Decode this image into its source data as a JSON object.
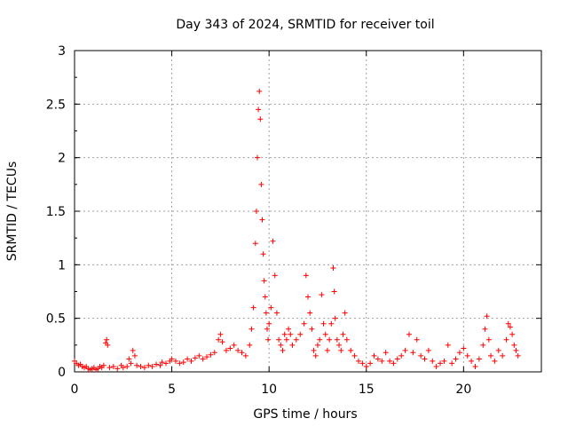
{
  "chart_data": {
    "type": "scatter",
    "title": "Day 343 of 2024, SRMTID for receiver toil",
    "xlabel": "GPS time / hours",
    "ylabel": "SRMTID / TECUs",
    "xlim": [
      0,
      24
    ],
    "ylim": [
      0,
      3
    ],
    "xticks": [
      0,
      5,
      10,
      15,
      20
    ],
    "yticks": [
      0,
      0.5,
      1,
      1.5,
      2,
      2.5,
      3
    ],
    "ytick_labels": [
      "0",
      "0.5",
      "1",
      "1.5",
      "2",
      "2.5",
      "3"
    ],
    "grid": true,
    "marker": "+",
    "color": "#ff0000",
    "series": [
      {
        "name": "SRMTID",
        "points": [
          [
            0.0,
            0.1
          ],
          [
            0.1,
            0.08
          ],
          [
            0.2,
            0.06
          ],
          [
            0.3,
            0.07
          ],
          [
            0.4,
            0.05
          ],
          [
            0.5,
            0.04
          ],
          [
            0.6,
            0.05
          ],
          [
            0.7,
            0.03
          ],
          [
            0.8,
            0.02
          ],
          [
            0.9,
            0.03
          ],
          [
            1.0,
            0.04
          ],
          [
            1.1,
            0.02
          ],
          [
            1.2,
            0.03
          ],
          [
            1.3,
            0.05
          ],
          [
            1.4,
            0.04
          ],
          [
            1.5,
            0.06
          ],
          [
            1.6,
            0.27
          ],
          [
            1.65,
            0.3
          ],
          [
            1.7,
            0.25
          ],
          [
            1.8,
            0.04
          ],
          [
            2.0,
            0.05
          ],
          [
            2.2,
            0.03
          ],
          [
            2.4,
            0.06
          ],
          [
            2.5,
            0.04
          ],
          [
            2.7,
            0.05
          ],
          [
            2.8,
            0.12
          ],
          [
            2.9,
            0.08
          ],
          [
            3.0,
            0.2
          ],
          [
            3.1,
            0.15
          ],
          [
            3.2,
            0.06
          ],
          [
            3.4,
            0.05
          ],
          [
            3.6,
            0.04
          ],
          [
            3.8,
            0.06
          ],
          [
            4.0,
            0.05
          ],
          [
            4.2,
            0.07
          ],
          [
            4.4,
            0.06
          ],
          [
            4.5,
            0.09
          ],
          [
            4.7,
            0.08
          ],
          [
            4.9,
            0.1
          ],
          [
            5.0,
            0.12
          ],
          [
            5.2,
            0.1
          ],
          [
            5.4,
            0.08
          ],
          [
            5.6,
            0.09
          ],
          [
            5.8,
            0.12
          ],
          [
            6.0,
            0.1
          ],
          [
            6.2,
            0.13
          ],
          [
            6.4,
            0.15
          ],
          [
            6.6,
            0.12
          ],
          [
            6.8,
            0.14
          ],
          [
            7.0,
            0.16
          ],
          [
            7.2,
            0.18
          ],
          [
            7.4,
            0.3
          ],
          [
            7.5,
            0.35
          ],
          [
            7.6,
            0.28
          ],
          [
            7.8,
            0.2
          ],
          [
            8.0,
            0.22
          ],
          [
            8.2,
            0.25
          ],
          [
            8.4,
            0.2
          ],
          [
            8.6,
            0.18
          ],
          [
            8.8,
            0.15
          ],
          [
            9.0,
            0.25
          ],
          [
            9.1,
            0.4
          ],
          [
            9.2,
            0.6
          ],
          [
            9.3,
            1.2
          ],
          [
            9.35,
            1.5
          ],
          [
            9.4,
            2.0
          ],
          [
            9.45,
            2.45
          ],
          [
            9.5,
            2.62
          ],
          [
            9.55,
            2.36
          ],
          [
            9.6,
            1.75
          ],
          [
            9.65,
            1.42
          ],
          [
            9.7,
            1.1
          ],
          [
            9.75,
            0.85
          ],
          [
            9.8,
            0.7
          ],
          [
            9.85,
            0.55
          ],
          [
            9.9,
            0.4
          ],
          [
            9.95,
            0.3
          ],
          [
            10.0,
            0.45
          ],
          [
            10.1,
            0.6
          ],
          [
            10.2,
            1.22
          ],
          [
            10.3,
            0.9
          ],
          [
            10.4,
            0.55
          ],
          [
            10.5,
            0.3
          ],
          [
            10.6,
            0.25
          ],
          [
            10.7,
            0.2
          ],
          [
            10.8,
            0.35
          ],
          [
            10.9,
            0.3
          ],
          [
            11.0,
            0.4
          ],
          [
            11.1,
            0.35
          ],
          [
            11.2,
            0.25
          ],
          [
            11.4,
            0.3
          ],
          [
            11.6,
            0.35
          ],
          [
            11.8,
            0.45
          ],
          [
            11.9,
            0.9
          ],
          [
            12.0,
            0.7
          ],
          [
            12.1,
            0.55
          ],
          [
            12.2,
            0.4
          ],
          [
            12.3,
            0.2
          ],
          [
            12.4,
            0.15
          ],
          [
            12.5,
            0.25
          ],
          [
            12.6,
            0.3
          ],
          [
            12.7,
            0.72
          ],
          [
            12.8,
            0.45
          ],
          [
            12.9,
            0.35
          ],
          [
            13.0,
            0.2
          ],
          [
            13.1,
            0.3
          ],
          [
            13.2,
            0.45
          ],
          [
            13.3,
            0.97
          ],
          [
            13.35,
            0.75
          ],
          [
            13.4,
            0.5
          ],
          [
            13.5,
            0.3
          ],
          [
            13.6,
            0.25
          ],
          [
            13.7,
            0.2
          ],
          [
            13.8,
            0.35
          ],
          [
            13.9,
            0.55
          ],
          [
            14.0,
            0.3
          ],
          [
            14.2,
            0.2
          ],
          [
            14.4,
            0.15
          ],
          [
            14.6,
            0.1
          ],
          [
            14.8,
            0.08
          ],
          [
            15.0,
            0.05
          ],
          [
            15.2,
            0.08
          ],
          [
            15.4,
            0.15
          ],
          [
            15.6,
            0.12
          ],
          [
            15.8,
            0.1
          ],
          [
            16.0,
            0.18
          ],
          [
            16.2,
            0.1
          ],
          [
            16.4,
            0.08
          ],
          [
            16.6,
            0.12
          ],
          [
            16.8,
            0.15
          ],
          [
            17.0,
            0.2
          ],
          [
            17.2,
            0.35
          ],
          [
            17.4,
            0.18
          ],
          [
            17.6,
            0.3
          ],
          [
            17.8,
            0.15
          ],
          [
            18.0,
            0.12
          ],
          [
            18.2,
            0.2
          ],
          [
            18.4,
            0.1
          ],
          [
            18.6,
            0.05
          ],
          [
            18.8,
            0.08
          ],
          [
            19.0,
            0.1
          ],
          [
            19.2,
            0.25
          ],
          [
            19.4,
            0.08
          ],
          [
            19.6,
            0.12
          ],
          [
            19.8,
            0.18
          ],
          [
            20.0,
            0.22
          ],
          [
            20.2,
            0.15
          ],
          [
            20.4,
            0.1
          ],
          [
            20.6,
            0.05
          ],
          [
            20.8,
            0.12
          ],
          [
            21.0,
            0.25
          ],
          [
            21.1,
            0.4
          ],
          [
            21.2,
            0.52
          ],
          [
            21.3,
            0.3
          ],
          [
            21.4,
            0.15
          ],
          [
            21.6,
            0.1
          ],
          [
            21.8,
            0.2
          ],
          [
            22.0,
            0.15
          ],
          [
            22.2,
            0.3
          ],
          [
            22.3,
            0.45
          ],
          [
            22.4,
            0.42
          ],
          [
            22.5,
            0.35
          ],
          [
            22.6,
            0.25
          ],
          [
            22.7,
            0.2
          ],
          [
            22.8,
            0.15
          ]
        ]
      }
    ]
  }
}
